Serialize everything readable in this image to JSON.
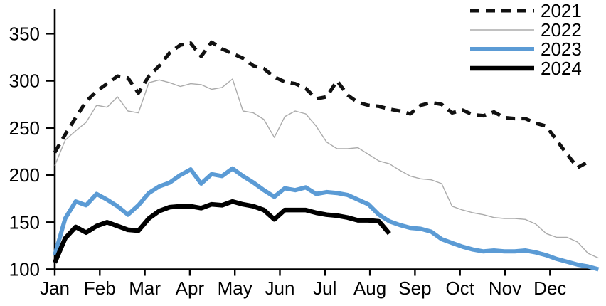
{
  "chart_data": {
    "type": "line",
    "title": "",
    "x_unit": "weekly observations, Jan through Dec",
    "x_tick_labels": [
      "Jan",
      "Feb",
      "Mar",
      "Apr",
      "May",
      "Jun",
      "Jul",
      "Aug",
      "Sep",
      "Oct",
      "Nov",
      "Dec"
    ],
    "y_ticks": [
      100,
      150,
      200,
      250,
      300,
      350
    ],
    "ylim": [
      100,
      375
    ],
    "grid": false,
    "legend_position": "top-right",
    "axis_color": "#000000",
    "background_color": "#ffffff",
    "series": [
      {
        "name": "2021",
        "color": "#111111",
        "style": "dashed",
        "width": 5,
        "values": [
          224,
          243,
          261,
          278,
          289,
          297,
          305,
          303,
          287,
          305,
          316,
          330,
          338,
          340,
          326,
          341,
          334,
          329,
          324,
          316,
          313,
          304,
          299,
          297,
          292,
          281,
          283,
          300,
          285,
          277,
          274,
          273,
          270,
          268,
          265,
          274,
          277,
          275,
          266,
          269,
          264,
          263,
          267,
          261,
          260,
          260,
          255,
          252,
          237,
          222,
          208,
          214,
          null
        ]
      },
      {
        "name": "2022",
        "color": "#ababab",
        "style": "solid",
        "width": 1.4,
        "values": [
          210,
          237,
          247,
          256,
          274,
          272,
          283,
          268,
          266,
          298,
          301,
          298,
          294,
          297,
          296,
          291,
          293,
          302,
          268,
          266,
          259,
          240,
          262,
          268,
          265,
          252,
          235,
          228,
          228,
          229,
          222,
          215,
          212,
          205,
          199,
          196,
          195,
          191,
          167,
          163,
          160,
          158,
          155,
          154,
          154,
          153,
          148,
          138,
          134,
          134,
          129,
          117,
          112
        ]
      },
      {
        "name": "2023",
        "color": "#5b9bd5",
        "style": "solid",
        "width": 6,
        "values": [
          115,
          154,
          172,
          168,
          180,
          174,
          167,
          158,
          168,
          181,
          188,
          192,
          200,
          206,
          191,
          201,
          199,
          207,
          199,
          192,
          184,
          177,
          186,
          184,
          187,
          180,
          182,
          181,
          179,
          174,
          169,
          158,
          151,
          147,
          144,
          143,
          140,
          132,
          128,
          124,
          121,
          119,
          120,
          119,
          119,
          120,
          118,
          115,
          111,
          108,
          105,
          103,
          100
        ]
      },
      {
        "name": "2024",
        "color": "#000000",
        "style": "solid",
        "width": 6.5,
        "values": [
          107,
          133,
          145,
          139,
          146,
          150,
          146,
          142,
          141,
          154,
          162,
          166,
          167,
          167,
          165,
          169,
          168,
          172,
          169,
          167,
          163,
          153,
          163,
          163,
          163,
          160,
          158,
          157,
          155,
          152,
          152,
          151,
          138,
          null,
          null,
          null,
          null,
          null,
          null,
          null,
          null,
          null,
          null,
          null,
          null,
          null,
          null,
          null,
          null,
          null,
          null,
          null,
          null
        ]
      }
    ]
  }
}
